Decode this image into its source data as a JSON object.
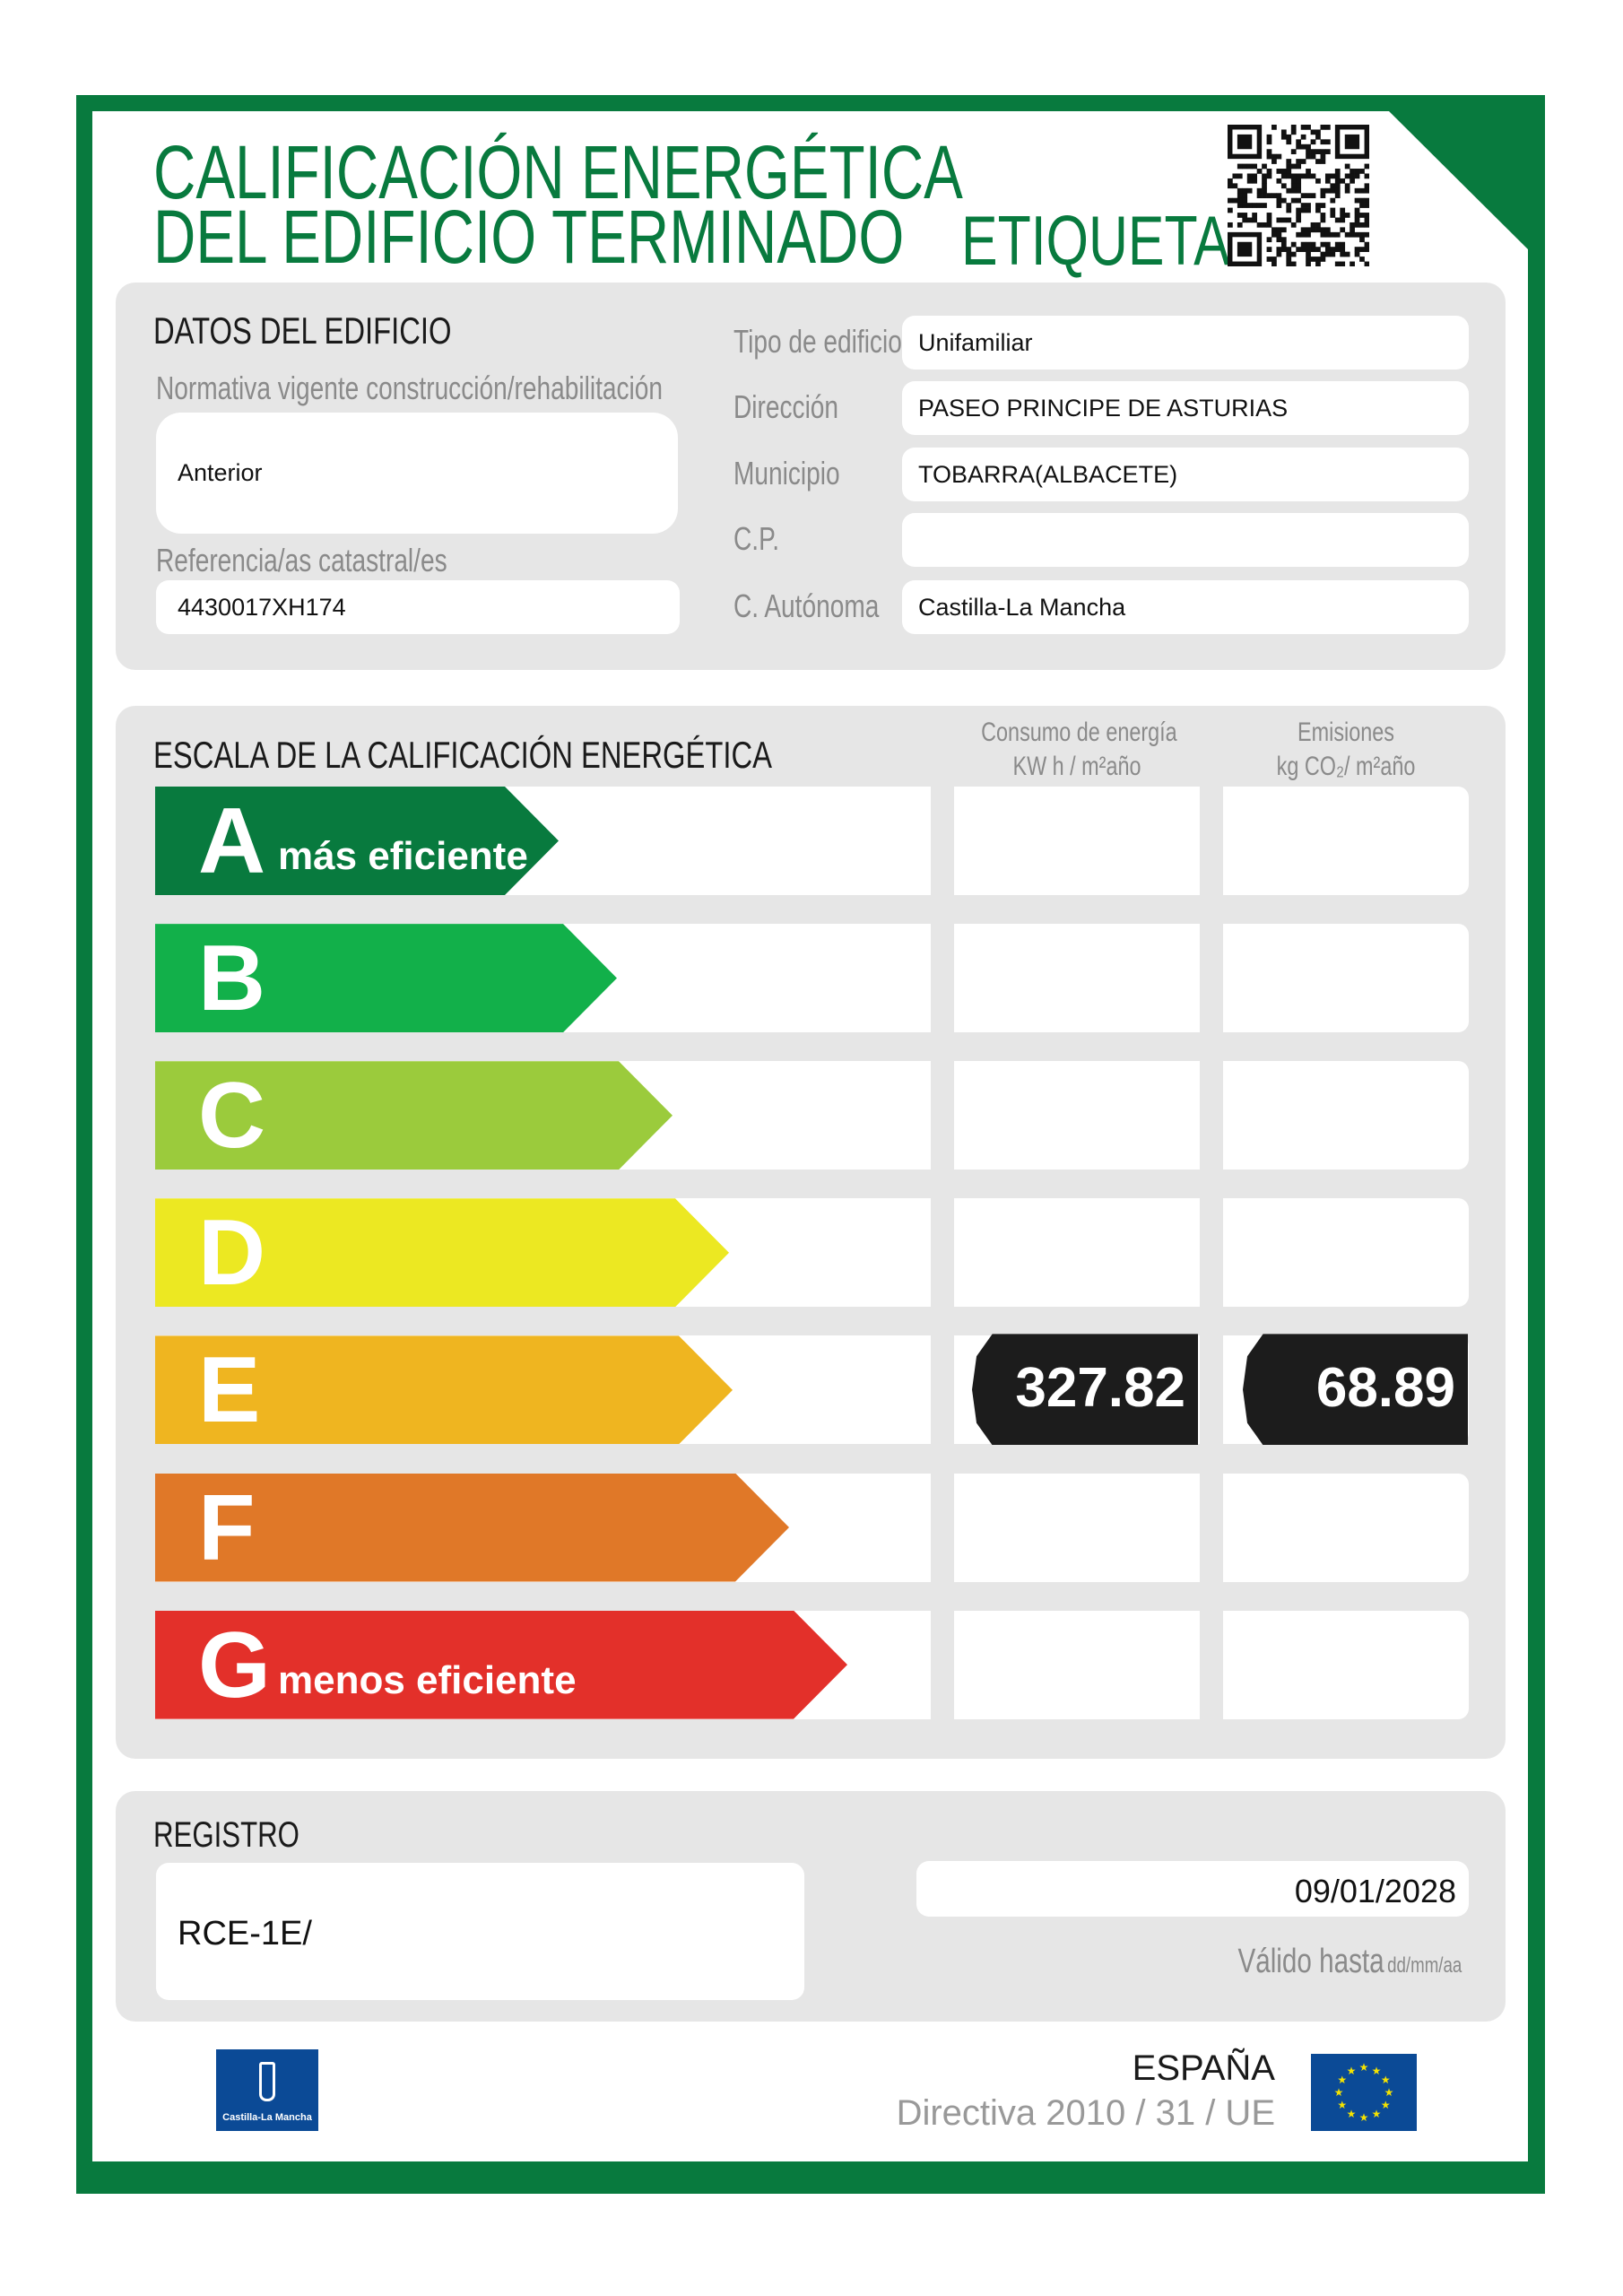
{
  "header": {
    "title_line1": "CALIFICACIÓN   ENERGÉTICA",
    "title_line2": "DEL EDIFICIO TERMINADO",
    "label_word": "ETIQUETA"
  },
  "colors": {
    "brand_green": "#087a3e",
    "panel_gray": "#e6e6e6"
  },
  "building": {
    "section_title": "DATOS DEL EDIFICIO",
    "normativa_label": "Normativa vigente construcción/rehabilitación",
    "normativa_value": "Anterior",
    "catastral_label": "Referencia/as catastral/es",
    "catastral_value": "4430017XH174",
    "fields": [
      {
        "label": "Tipo de edificio",
        "value": "Unifamiliar"
      },
      {
        "label": "Dirección",
        "value": "PASEO PRINCIPE DE ASTURIAS"
      },
      {
        "label": "Municipio",
        "value": "TOBARRA(ALBACETE)"
      },
      {
        "label": "C.P.",
        "value": ""
      },
      {
        "label": "C. Autónoma",
        "value": "Castilla-La Mancha"
      }
    ]
  },
  "scale": {
    "section_title": "ESCALA DE LA CALIFICACIÓN ENERGÉTICA",
    "consumo_header": "Consumo de energía",
    "consumo_unit": "KW h / m²año",
    "emisiones_header": "Emisiones",
    "emisiones_unit": "kg CO₂/ m²año",
    "rows": [
      {
        "letter": "A",
        "sublabel": "más eficiente",
        "color": "#087a3e",
        "consumo": "",
        "emisiones": ""
      },
      {
        "letter": "B",
        "sublabel": "",
        "color": "#12b04a",
        "consumo": "",
        "emisiones": ""
      },
      {
        "letter": "C",
        "sublabel": "",
        "color": "#9bcb3c",
        "consumo": "",
        "emisiones": ""
      },
      {
        "letter": "D",
        "sublabel": "",
        "color": "#ece822",
        "consumo": "",
        "emisiones": ""
      },
      {
        "letter": "E",
        "sublabel": "",
        "color": "#efb520",
        "consumo": "327.82",
        "emisiones": "68.89"
      },
      {
        "letter": "F",
        "sublabel": "",
        "color": "#e07828",
        "consumo": "",
        "emisiones": ""
      },
      {
        "letter": "G",
        "sublabel": "menos eficiente",
        "color": "#e3302a",
        "consumo": "",
        "emisiones": ""
      }
    ]
  },
  "registry": {
    "section_title": "REGISTRO",
    "value": "RCE-1E/",
    "valid_until": "09/01/2028",
    "valid_label": "Válido hasta",
    "valid_format": "dd/mm/aa"
  },
  "footer": {
    "country": "ESPAÑA",
    "directive": "Directiva 2010 / 31 / UE",
    "logo_left_text": "Castilla-La Mancha",
    "eu_flag_icon": "eu-flag-icon"
  }
}
